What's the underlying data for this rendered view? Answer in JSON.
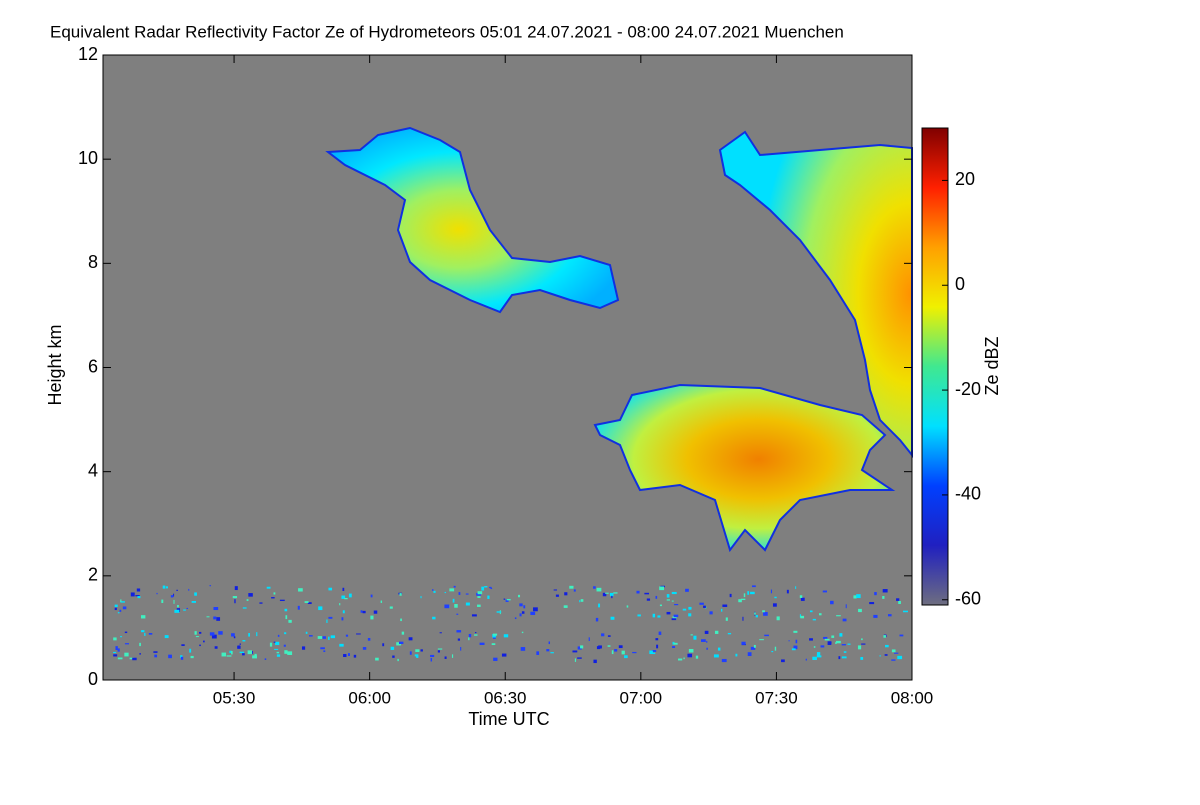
{
  "chart_data": {
    "type": "heatmap",
    "title": "Equivalent Radar Reflectivity Factor Ze of Hydrometeors   05:01 24.07.2021 - 08:00 24.07.2021 Muenchen",
    "x_label": "Time UTC",
    "y_label": "Height km",
    "colorbar_label": "Ze dBZ",
    "xlim": [
      301,
      480
    ],
    "xticks": [
      {
        "value": 330,
        "label": "05:30"
      },
      {
        "value": 360,
        "label": "06:00"
      },
      {
        "value": 390,
        "label": "06:30"
      },
      {
        "value": 420,
        "label": "07:00"
      },
      {
        "value": 450,
        "label": "07:30"
      },
      {
        "value": 480,
        "label": "08:00"
      }
    ],
    "ylim": [
      0,
      12
    ],
    "yticks": [
      0,
      2,
      4,
      6,
      8,
      10,
      12
    ],
    "zlim": [
      -61,
      30
    ],
    "zticks": [
      -60,
      -40,
      -20,
      0,
      20
    ],
    "colormap": [
      "#6e6e80",
      "#2020c0",
      "#0040ff",
      "#00e0ff",
      "#40e890",
      "#f0f000",
      "#ffa000",
      "#ff2000",
      "#800000"
    ],
    "background": "#7f7f7f"
  }
}
